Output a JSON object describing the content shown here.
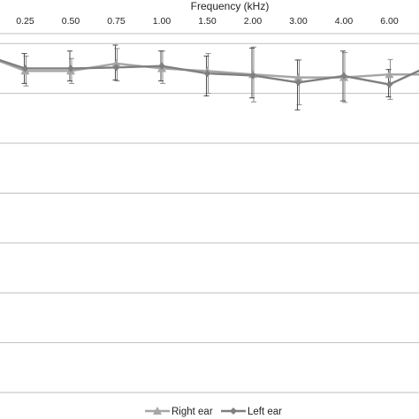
{
  "chart_data": {
    "type": "line",
    "xlabel": "Frequency (kHz)",
    "x": [
      "",
      "0.25",
      "0.50",
      "0.75",
      "1.00",
      "1.50",
      "2.00",
      "3.00",
      "4.00",
      "6.00",
      ""
    ],
    "ylim": [
      -7,
      0.2
    ],
    "grid": true,
    "legend_position": "bottom",
    "series": [
      {
        "name": "Right ear",
        "marker": "triangle",
        "color": "#a6a6a6",
        "values": [
          -0.2,
          -0.55,
          -0.55,
          -0.4,
          -0.5,
          -0.55,
          -0.62,
          -0.68,
          -0.68,
          -0.62,
          -0.62
        ],
        "err_low": [
          0.3,
          0.3,
          0.25,
          0.35,
          0.3,
          0.45,
          0.55,
          0.55,
          0.5,
          0.5,
          0.3
        ],
        "err_high": [
          0.3,
          0.3,
          0.25,
          0.3,
          0.35,
          0.35,
          0.55,
          0.35,
          0.5,
          0.3,
          0.3
        ]
      },
      {
        "name": "Left ear",
        "marker": "diamond",
        "color": "#7f7f7f",
        "values": [
          -0.2,
          -0.5,
          -0.5,
          -0.48,
          -0.45,
          -0.6,
          -0.64,
          -0.78,
          -0.65,
          -0.82,
          -0.4
        ],
        "err_low": [
          0.3,
          0.3,
          0.25,
          0.25,
          0.3,
          0.45,
          0.45,
          0.55,
          0.5,
          0.25,
          0.3
        ],
        "err_high": [
          0.3,
          0.3,
          0.35,
          0.45,
          0.3,
          0.35,
          0.55,
          0.45,
          0.5,
          0.3,
          0.3
        ]
      }
    ]
  }
}
